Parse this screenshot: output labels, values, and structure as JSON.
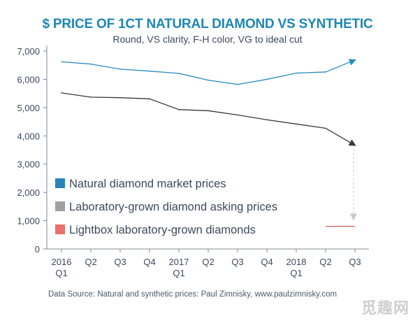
{
  "colors": {
    "title": "#1c87b6",
    "text": "#3c4a5b",
    "axis": "#7f8b96",
    "natural": "#2a8bc0",
    "lab": "#3a3a3a",
    "lightbox": "#e05b5b",
    "projection": "#c8c8c8",
    "source": "#4a5a6b",
    "legend_natural_swatch": "#2a83b8",
    "legend_lab_swatch": "#a0a0a0",
    "legend_lightbox_swatch": "#e96f6f"
  },
  "chart_data": {
    "type": "line",
    "title": "$ PRICE OF 1CT NATURAL DIAMOND VS SYNTHETIC",
    "subtitle": "Round, VS clarity, F-H color, VG to ideal cut",
    "categories": [
      "2016|Q1",
      "Q2",
      "Q3",
      "Q4",
      "2017|Q1",
      "Q2",
      "Q3",
      "Q4",
      "2018|Q1",
      "Q2",
      "Q3"
    ],
    "y_ticks": [
      0,
      1000,
      2000,
      3000,
      4000,
      5000,
      6000,
      7000
    ],
    "y_tick_labels": [
      "0",
      "1,000",
      "2,000",
      "3,000",
      "4,000",
      "5,000",
      "6,000",
      "7,000"
    ],
    "ylim": [
      0,
      7000
    ],
    "grid": false,
    "series": [
      {
        "name": "Natural diamond market prices",
        "color_key": "natural",
        "values": [
          6620,
          6540,
          6360,
          6290,
          6210,
          5970,
          5820,
          6000,
          6220,
          6260,
          6680
        ],
        "end_arrow": true
      },
      {
        "name": "Laboratory-grown diamond asking prices",
        "color_key": "lab",
        "values": [
          5520,
          5370,
          5350,
          5310,
          4930,
          4890,
          4740,
          4570,
          4420,
          4270,
          3670
        ],
        "end_arrow": true
      },
      {
        "name": "Lightbox laboratory-grown diamonds",
        "color_key": "lightbox",
        "values": [
          null,
          null,
          null,
          null,
          null,
          null,
          null,
          null,
          null,
          800,
          800
        ],
        "segment_x": [
          9.0,
          10.0
        ]
      }
    ],
    "annotations": [
      {
        "type": "dashed-arrow",
        "x": 10,
        "from": 3550,
        "to": 1050
      }
    ],
    "legend_placement": "lower-left"
  },
  "legend": [
    {
      "label": "Natural diamond market prices",
      "color_key": "legend_natural_swatch"
    },
    {
      "label": "Laboratory-grown diamond asking prices",
      "color_key": "legend_lab_swatch"
    },
    {
      "label": "Lightbox laboratory-grown diamonds",
      "color_key": "legend_lightbox_swatch"
    }
  ],
  "source": "Data Source: Natural and synthetic prices: Paul Zimnisky, www.paulzimnisky.com",
  "watermark": "觅趣网"
}
